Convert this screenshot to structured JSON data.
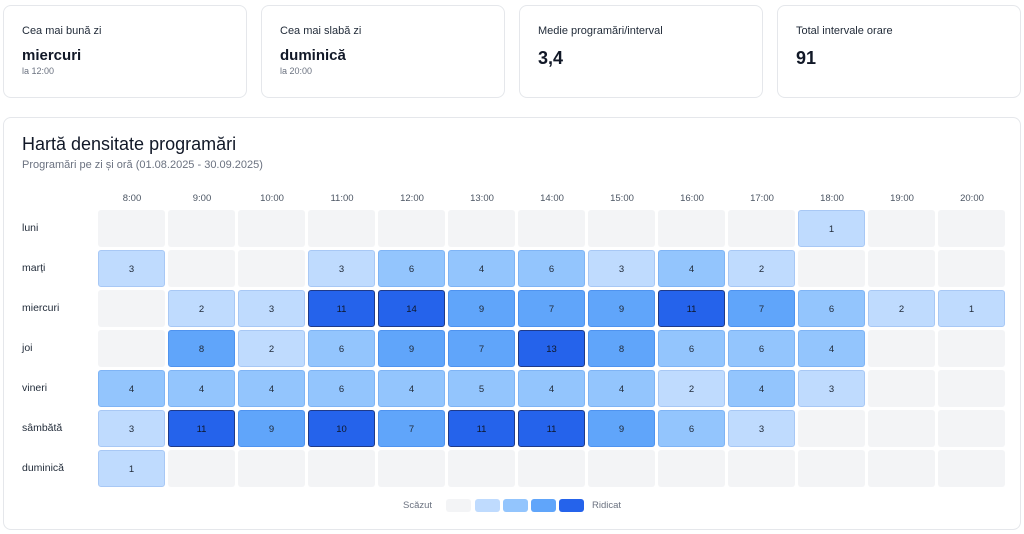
{
  "stats": [
    {
      "label": "Cea mai bună zi",
      "value": "miercuri",
      "sub": "la 12:00"
    },
    {
      "label": "Cea mai slabă zi",
      "value": "duminică",
      "sub": "la 20:00"
    },
    {
      "label": "Medie programări/interval",
      "value": "3,4",
      "sub": ""
    },
    {
      "label": "Total intervale orare",
      "value": "91",
      "sub": ""
    }
  ],
  "heatmap": {
    "title": "Hartă densitate programări",
    "subtitle": "Programări pe zi și oră (01.08.2025 - 30.09.2025)",
    "hours": [
      "8:00",
      "9:00",
      "10:00",
      "11:00",
      "12:00",
      "13:00",
      "14:00",
      "15:00",
      "16:00",
      "17:00",
      "18:00",
      "19:00",
      "20:00"
    ],
    "days": [
      "luni",
      "marți",
      "miercuri",
      "joi",
      "vineri",
      "sâmbătă",
      "duminică"
    ],
    "values": [
      [
        null,
        null,
        null,
        null,
        null,
        null,
        null,
        null,
        null,
        null,
        1,
        null,
        null
      ],
      [
        3,
        null,
        null,
        3,
        6,
        4,
        6,
        3,
        4,
        2,
        null,
        null,
        null
      ],
      [
        null,
        2,
        3,
        11,
        14,
        9,
        7,
        9,
        11,
        7,
        6,
        2,
        1
      ],
      [
        null,
        8,
        2,
        6,
        9,
        7,
        13,
        8,
        6,
        6,
        4,
        null,
        null
      ],
      [
        4,
        4,
        4,
        6,
        4,
        5,
        4,
        4,
        2,
        4,
        3,
        null,
        null
      ],
      [
        3,
        11,
        9,
        10,
        7,
        11,
        11,
        9,
        6,
        3,
        null,
        null,
        null
      ],
      [
        1,
        null,
        null,
        null,
        null,
        null,
        null,
        null,
        null,
        null,
        null,
        null,
        null
      ]
    ],
    "legend": {
      "low": "Scăzut",
      "high": "Ridicat"
    },
    "colors": {
      "empty": "#f3f4f6",
      "l1": "#bfdbfe",
      "l2": "#93c5fd",
      "l3": "#60a5fa",
      "l4": "#2563eb"
    }
  }
}
